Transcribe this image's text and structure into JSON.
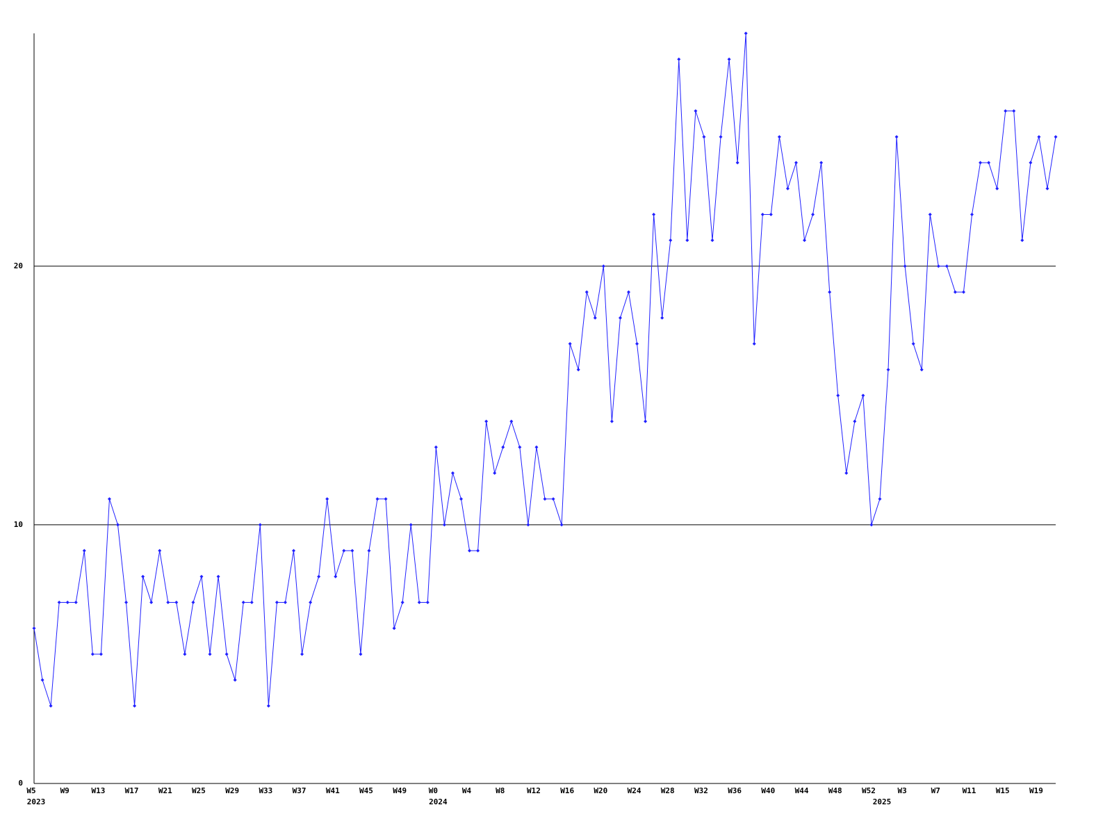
{
  "chart_data": {
    "type": "line",
    "color": "#2020ff",
    "marker": "diamond",
    "grid": true,
    "ylim": [
      0,
      29
    ],
    "yticks": [
      0,
      10,
      20
    ],
    "categories": [
      "W5",
      null,
      null,
      null,
      "W9",
      null,
      null,
      null,
      "W13",
      null,
      null,
      null,
      "W17",
      null,
      null,
      null,
      "W21",
      null,
      null,
      null,
      "W25",
      null,
      null,
      null,
      "W29",
      null,
      null,
      null,
      "W33",
      null,
      null,
      null,
      "W37",
      null,
      null,
      null,
      "W41",
      null,
      null,
      null,
      "W45",
      null,
      null,
      null,
      "W49",
      null,
      null,
      null,
      "W0",
      null,
      null,
      null,
      "W4",
      null,
      null,
      null,
      "W8",
      null,
      null,
      null,
      "W12",
      null,
      null,
      null,
      "W16",
      null,
      null,
      null,
      "W20",
      null,
      null,
      null,
      "W24",
      null,
      null,
      null,
      "W28",
      null,
      null,
      null,
      "W32",
      null,
      null,
      null,
      "W36",
      null,
      null,
      null,
      "W40",
      null,
      null,
      null,
      "W44",
      null,
      null,
      null,
      "W48",
      null,
      null,
      null,
      "W52",
      null,
      null,
      null,
      "W3",
      null,
      null,
      null,
      "W7",
      null,
      null,
      null,
      "W11",
      null,
      null,
      null,
      "W15",
      null,
      null,
      null,
      "W19",
      null,
      null
    ],
    "year_labels": [
      "2023",
      null,
      null,
      null,
      null,
      null,
      null,
      null,
      null,
      null,
      null,
      null,
      null,
      null,
      null,
      null,
      null,
      null,
      null,
      null,
      null,
      null,
      null,
      null,
      null,
      null,
      null,
      null,
      null,
      null,
      null,
      null,
      null,
      null,
      null,
      null,
      null,
      null,
      null,
      null,
      null,
      null,
      null,
      null,
      null,
      null,
      null,
      null,
      "2024",
      null,
      null,
      null,
      null,
      null,
      null,
      null,
      null,
      null,
      null,
      null,
      null,
      null,
      null,
      null,
      null,
      null,
      null,
      null,
      null,
      null,
      null,
      null,
      null,
      null,
      null,
      null,
      null,
      null,
      null,
      null,
      null,
      null,
      null,
      null,
      null,
      null,
      null,
      null,
      null,
      null,
      null,
      null,
      null,
      null,
      null,
      null,
      null,
      null,
      null,
      null,
      null,
      "2025",
      null,
      null,
      null,
      null,
      null,
      null,
      null,
      null,
      null,
      null,
      null,
      null,
      null,
      null,
      null,
      null,
      null,
      null,
      null,
      null
    ],
    "values": [
      6,
      4,
      3,
      7,
      7,
      7,
      9,
      5,
      5,
      11,
      10,
      7,
      3,
      8,
      7,
      9,
      7,
      7,
      5,
      7,
      8,
      5,
      8,
      5,
      4,
      7,
      7,
      10,
      3,
      7,
      7,
      9,
      5,
      7,
      8,
      11,
      8,
      9,
      9,
      5,
      9,
      11,
      11,
      6,
      7,
      10,
      7,
      7,
      13,
      10,
      12,
      11,
      9,
      9,
      14,
      12,
      13,
      14,
      13,
      10,
      13,
      11,
      11,
      10,
      17,
      16,
      19,
      18,
      20,
      14,
      18,
      19,
      17,
      14,
      22,
      18,
      21,
      28,
      21,
      26,
      25,
      21,
      25,
      28,
      24,
      29,
      17,
      22,
      22,
      25,
      23,
      24,
      21,
      22,
      24,
      19,
      15,
      12,
      14,
      15,
      10,
      11,
      16,
      25,
      20,
      17,
      16,
      22,
      20,
      20,
      19,
      19,
      22,
      24,
      24,
      23,
      26,
      26,
      21,
      24,
      25,
      23,
      25
    ]
  }
}
